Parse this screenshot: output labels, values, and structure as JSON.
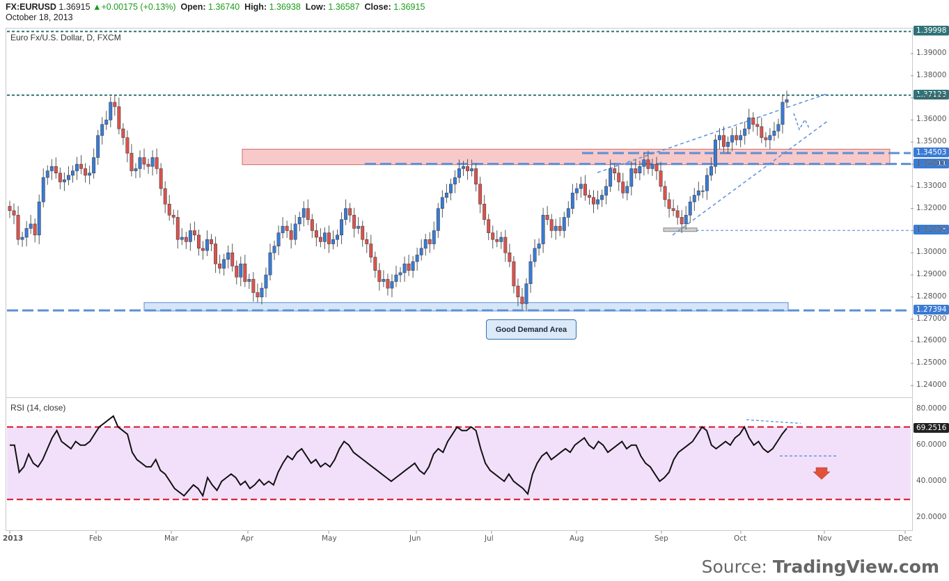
{
  "header": {
    "symbol": "FX:EURUSD",
    "last": "1.36915",
    "change": "+0.00175 (+0.13%)",
    "open_label": "Open:",
    "open": "1.36740",
    "high_label": "High:",
    "high": "1.36938",
    "low_label": "Low:",
    "low": "1.36587",
    "close_label": "Close:",
    "close": "1.36915",
    "date": "October 18, 2013"
  },
  "main_pane": {
    "title": "Euro Fx/U.S. Dollar, D, FXCM"
  },
  "rsi_pane": {
    "title": "RSI (14, close)"
  },
  "colors": {
    "bull": "#3a7bd5",
    "bear": "#d9534f",
    "teal_line": "#2f7378",
    "blue_dash": "#5b8fd8",
    "red_dash": "#d51020",
    "resistance_zone": "#f7c9c9",
    "demand_zone": "#d5e6f7",
    "rsi_band": "#f2e0fb",
    "price_tag": "#3a7bd5"
  },
  "callout": {
    "text": "Good Demand Area"
  },
  "source": {
    "prefix": "Source: ",
    "brand": "TradingView.com"
  },
  "chart_data": [
    {
      "type": "candlestick",
      "title": "Euro Fx/U.S. Dollar, D, FXCM",
      "ylim": [
        1.235,
        1.401
      ],
      "y_ticks": [
        "1.39000",
        "1.38000",
        "1.37000",
        "1.36000",
        "1.35000",
        "1.34000",
        "1.33000",
        "1.32000",
        "1.31000",
        "1.30000",
        "1.29000",
        "1.28000",
        "1.27000",
        "1.26000",
        "1.25000",
        "1.24000"
      ],
      "x_ticks": [
        "2013",
        "Feb",
        "Mar",
        "Apr",
        "May",
        "Jun",
        "Jul",
        "Aug",
        "Sep",
        "Oct",
        "Nov",
        "Dec"
      ],
      "horizontal_levels": [
        {
          "value": 1.39998,
          "label": "1.39998",
          "style": "teal-dotted"
        },
        {
          "value": 1.37123,
          "label": "1.37123",
          "style": "teal-dotted"
        },
        {
          "value": 1.34503,
          "label": "1.34503",
          "style": "blue-dashed"
        },
        {
          "value": 1.34011,
          "label": "1.34011",
          "style": "blue-dashed"
        },
        {
          "value": 1.31008,
          "label": "1.31008",
          "style": "blue-thin-dashed"
        },
        {
          "value": 1.27394,
          "label": "1.27394",
          "style": "blue-dashed"
        }
      ],
      "zones": [
        {
          "name": "resistance",
          "from": 1.341,
          "to": 1.345,
          "start": "Apr",
          "end": "Dec"
        },
        {
          "name": "demand",
          "from": 1.2745,
          "to": 1.2755,
          "start": "Mar",
          "end": "Oct"
        }
      ],
      "last_price": 1.36915,
      "closes": [
        1.319,
        1.317,
        1.306,
        1.307,
        1.311,
        1.313,
        1.308,
        1.323,
        1.334,
        1.337,
        1.339,
        1.336,
        1.332,
        1.333,
        1.335,
        1.337,
        1.34,
        1.338,
        1.335,
        1.336,
        1.343,
        1.353,
        1.358,
        1.36,
        1.368,
        1.366,
        1.356,
        1.352,
        1.345,
        1.337,
        1.338,
        1.343,
        1.34,
        1.339,
        1.343,
        1.338,
        1.329,
        1.322,
        1.317,
        1.316,
        1.306,
        1.307,
        1.305,
        1.31,
        1.308,
        1.302,
        1.301,
        1.306,
        1.304,
        1.295,
        1.293,
        1.297,
        1.3,
        1.294,
        1.289,
        1.295,
        1.287,
        1.288,
        1.282,
        1.28,
        1.284,
        1.29,
        1.3,
        1.303,
        1.309,
        1.312,
        1.31,
        1.306,
        1.313,
        1.316,
        1.32,
        1.315,
        1.31,
        1.307,
        1.305,
        1.309,
        1.304,
        1.306,
        1.308,
        1.315,
        1.32,
        1.317,
        1.311,
        1.312,
        1.306,
        1.304,
        1.298,
        1.292,
        1.287,
        1.288,
        1.284,
        1.287,
        1.29,
        1.291,
        1.295,
        1.292,
        1.296,
        1.299,
        1.302,
        1.306,
        1.304,
        1.31,
        1.32,
        1.325,
        1.327,
        1.331,
        1.334,
        1.338,
        1.339,
        1.337,
        1.338,
        1.331,
        1.322,
        1.315,
        1.309,
        1.306,
        1.305,
        1.307,
        1.3,
        1.296,
        1.285,
        1.28,
        1.277,
        1.286,
        1.296,
        1.302,
        1.304,
        1.317,
        1.315,
        1.31,
        1.312,
        1.31,
        1.316,
        1.32,
        1.327,
        1.329,
        1.331,
        1.326,
        1.325,
        1.322,
        1.324,
        1.326,
        1.33,
        1.338,
        1.336,
        1.332,
        1.327,
        1.33,
        1.338,
        1.336,
        1.339,
        1.342,
        1.338,
        1.34,
        1.337,
        1.33,
        1.324,
        1.32,
        1.319,
        1.316,
        1.313,
        1.317,
        1.323,
        1.326,
        1.328,
        1.328,
        1.335,
        1.339,
        1.351,
        1.353,
        1.348,
        1.35,
        1.353,
        1.351,
        1.353,
        1.356,
        1.361,
        1.358,
        1.357,
        1.352,
        1.351,
        1.353,
        1.355,
        1.358,
        1.368,
        1.3692
      ]
    },
    {
      "type": "line",
      "title": "RSI (14, close)",
      "ylim": [
        13,
        86
      ],
      "y_ticks": [
        "80.0000",
        "60.0000",
        "40.0000",
        "20.0000"
      ],
      "bands": [
        30,
        70
      ],
      "last_value": 69.2516,
      "last_label": "69.2516",
      "values": [
        60,
        60,
        45,
        48,
        55,
        50,
        48,
        52,
        58,
        64,
        68,
        62,
        60,
        58,
        62,
        60,
        60,
        62,
        66,
        70,
        72,
        74,
        76,
        70,
        68,
        66,
        56,
        52,
        50,
        48,
        48,
        52,
        46,
        44,
        40,
        36,
        34,
        32,
        35,
        38,
        36,
        32,
        42,
        38,
        35,
        40,
        42,
        44,
        42,
        38,
        40,
        36,
        38,
        41,
        38,
        40,
        38,
        45,
        50,
        54,
        52,
        56,
        58,
        54,
        50,
        52,
        48,
        50,
        48,
        52,
        58,
        62,
        60,
        56,
        54,
        52,
        50,
        48,
        46,
        44,
        42,
        40,
        42,
        44,
        46,
        48,
        50,
        46,
        44,
        48,
        55,
        58,
        56,
        62,
        66,
        70,
        68,
        68,
        70,
        68,
        58,
        50,
        46,
        44,
        42,
        40,
        44,
        40,
        38,
        36,
        33,
        44,
        50,
        54,
        56,
        52,
        54,
        56,
        58,
        56,
        60,
        62,
        64,
        60,
        58,
        62,
        60,
        56,
        58,
        60,
        62,
        58,
        60,
        60,
        54,
        50,
        48,
        44,
        40,
        42,
        45,
        52,
        56,
        58,
        60,
        62,
        66,
        70,
        68,
        60,
        58,
        60,
        62,
        60,
        64,
        66,
        70,
        64,
        60,
        62,
        58,
        56,
        58,
        62,
        66,
        69.2516
      ]
    }
  ]
}
